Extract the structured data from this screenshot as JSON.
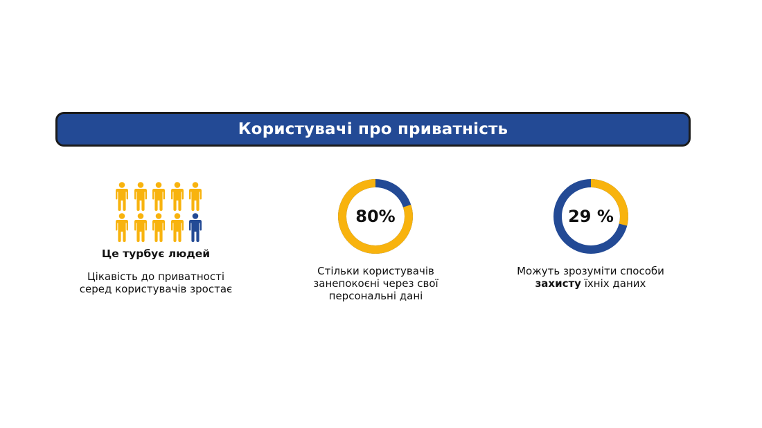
{
  "header": {
    "title": "Користувачі про приватність"
  },
  "colors": {
    "brand_blue": "#234a95",
    "accent_yellow": "#f8b30e",
    "text": "#111111"
  },
  "people": {
    "title": "Це турбує людей",
    "caption_lines": [
      "Цікавість до приватності",
      "серед користувачів зростає"
    ],
    "icon": "person-icon"
  },
  "stat_concerned": {
    "label": "80%",
    "caption_lines": [
      "Стільки користувачів",
      "занепокоєні через свої",
      "персональні дані"
    ]
  },
  "stat_understand": {
    "label": "29 %",
    "caption_before": "Можуть зрозуміти способи",
    "caption_bold": "захисту",
    "caption_after": " їхніх даних"
  },
  "chart_data": [
    {
      "type": "pictogram",
      "total": 10,
      "rows": 2,
      "per_row": 5,
      "highlighted": 9,
      "highlight_color": "#f8b30e",
      "other_color": "#234a95"
    },
    {
      "type": "pie",
      "style": "donut",
      "label": "80%",
      "values": [
        80,
        20
      ],
      "colors": [
        "#f8b30e",
        "#234a95"
      ]
    },
    {
      "type": "pie",
      "style": "donut",
      "label": "29 %",
      "values": [
        29,
        71
      ],
      "colors": [
        "#f8b30e",
        "#234a95"
      ]
    }
  ]
}
